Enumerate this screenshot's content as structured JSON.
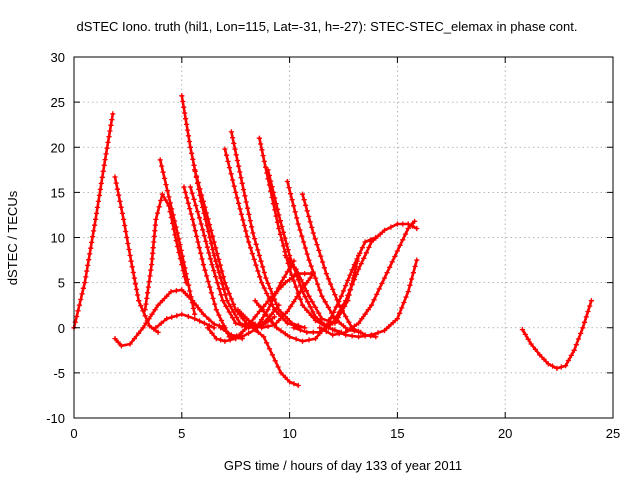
{
  "chart_data": {
    "type": "scatter",
    "title": "dSTEC Iono. truth (hil1, Lon=115, Lat=-31, h=-27): STEC-STEC_elemax in phase cont.",
    "xlabel": "GPS time / hours of day 133 of year 2011",
    "ylabel": "dSTEC  / TECUs",
    "xlim": [
      0,
      25
    ],
    "ylim": [
      -10,
      30
    ],
    "xticks": [
      0,
      5,
      10,
      15,
      20,
      25
    ],
    "yticks": [
      -10,
      -5,
      0,
      5,
      10,
      15,
      20,
      25,
      30
    ],
    "grid": true,
    "marker": "plus",
    "color": "#ff0000",
    "series": [
      {
        "x": [
          0.0,
          0.5,
          1.0,
          1.4,
          1.8
        ],
        "y": [
          0.0,
          5.0,
          12.0,
          18.0,
          23.7
        ]
      },
      {
        "x": [
          1.9,
          2.3,
          2.6,
          3.0,
          3.5,
          3.9
        ],
        "y": [
          16.7,
          12.0,
          8.0,
          3.0,
          0.2,
          -0.5
        ]
      },
      {
        "x": [
          1.9,
          2.2,
          2.6,
          3.2,
          3.9,
          4.5,
          5.0,
          5.5,
          6.0,
          6.5,
          7.0
        ],
        "y": [
          -1.2,
          -2.0,
          -1.8,
          0.0,
          2.5,
          4.0,
          4.2,
          3.0,
          1.5,
          0.4,
          0.0
        ]
      },
      {
        "x": [
          3.8,
          4.3,
          5.0,
          5.6,
          6.5
        ],
        "y": [
          0.0,
          1.0,
          1.5,
          1.0,
          0.0
        ]
      },
      {
        "x": [
          4.0,
          4.4,
          4.8,
          5.2,
          5.6
        ],
        "y": [
          18.6,
          14.5,
          10.5,
          6.0,
          1.5
        ]
      },
      {
        "x": [
          3.3,
          3.6,
          3.8,
          4.1,
          4.4,
          4.8,
          5.2
        ],
        "y": [
          2.0,
          7.0,
          12.0,
          14.8,
          13.5,
          9.0,
          5.0
        ]
      },
      {
        "x": [
          5.0,
          5.4,
          5.9,
          6.5,
          7.1,
          7.7,
          8.3,
          8.8,
          9.2,
          9.6,
          10.0,
          10.4
        ],
        "y": [
          25.7,
          20.0,
          14.0,
          8.0,
          3.0,
          0.5,
          0.0,
          -1.0,
          -3.0,
          -5.0,
          -6.0,
          -6.4
        ]
      },
      {
        "x": [
          5.1,
          5.5,
          6.0,
          6.6,
          7.2,
          7.8
        ],
        "y": [
          15.6,
          12.0,
          7.0,
          2.0,
          -1.0,
          -1.2
        ]
      },
      {
        "x": [
          5.4,
          5.9,
          6.4,
          6.9,
          7.5,
          8.1,
          8.7,
          9.3
        ],
        "y": [
          15.6,
          11.5,
          7.0,
          3.0,
          0.5,
          0.0,
          0.2,
          1.2
        ]
      },
      {
        "x": [
          5.6,
          6.0,
          6.5,
          7.0,
          7.5,
          8.0,
          8.5,
          9.0,
          9.5
        ],
        "y": [
          17.5,
          14.0,
          9.5,
          5.0,
          2.0,
          0.5,
          0.0,
          1.0,
          2.5
        ]
      },
      {
        "x": [
          7.0,
          7.5,
          8.1,
          8.7,
          9.3,
          9.9,
          10.5
        ],
        "y": [
          19.8,
          15.0,
          9.5,
          5.0,
          2.0,
          0.5,
          0.0
        ]
      },
      {
        "x": [
          7.3,
          7.8,
          8.3,
          8.9,
          9.5,
          10.1,
          10.7
        ],
        "y": [
          21.7,
          16.0,
          10.5,
          5.5,
          2.0,
          0.5,
          0.0
        ]
      },
      {
        "x": [
          8.6,
          9.0,
          9.5,
          10.0,
          10.6,
          11.2,
          11.8
        ],
        "y": [
          21.0,
          16.5,
          11.0,
          6.5,
          2.5,
          0.8,
          0.0
        ]
      },
      {
        "x": [
          9.0,
          9.5,
          10.0,
          10.6,
          11.2,
          11.8,
          12.4
        ],
        "y": [
          17.5,
          12.5,
          8.0,
          4.0,
          1.2,
          0.0,
          -0.5
        ]
      },
      {
        "x": [
          9.9,
          10.4,
          10.9,
          11.5,
          12.1,
          12.7,
          13.3
        ],
        "y": [
          16.2,
          11.5,
          7.5,
          3.5,
          1.0,
          -0.2,
          -0.5
        ]
      },
      {
        "x": [
          10.6,
          11.1,
          11.7,
          12.3,
          12.9,
          13.5,
          14.0
        ],
        "y": [
          14.8,
          10.5,
          6.0,
          2.5,
          0.0,
          -0.8,
          -1.0
        ]
      },
      {
        "x": [
          6.2,
          6.6,
          7.0,
          7.5,
          8.0,
          8.6,
          9.2,
          9.8,
          10.4,
          11.0
        ],
        "y": [
          0.0,
          -1.2,
          -1.5,
          -1.2,
          0.0,
          1.8,
          3.5,
          5.0,
          6.0,
          6.0
        ]
      },
      {
        "x": [
          6.8,
          7.3,
          7.8,
          8.4,
          9.0,
          9.6,
          10.2
        ],
        "y": [
          0.0,
          -0.8,
          -1.0,
          -0.2,
          2.0,
          5.0,
          7.4
        ]
      },
      {
        "x": [
          7.6,
          8.1,
          8.7,
          9.3,
          9.9,
          10.5,
          11.1
        ],
        "y": [
          2.0,
          0.8,
          0.0,
          0.3,
          1.8,
          4.0,
          6.0
        ]
      },
      {
        "x": [
          9.8,
          10.3,
          10.9,
          11.5,
          12.1,
          12.7,
          13.2
        ],
        "y": [
          8.0,
          6.5,
          3.5,
          1.0,
          0.5,
          3.0,
          8.0
        ]
      },
      {
        "x": [
          8.4,
          8.9,
          9.4,
          10.0,
          10.6,
          11.2,
          11.8,
          12.4,
          13.0,
          13.5,
          14.0
        ],
        "y": [
          3.0,
          1.5,
          0.0,
          -1.0,
          -1.5,
          -1.2,
          0.5,
          3.5,
          7.0,
          9.5,
          10.0
        ]
      },
      {
        "x": [
          11.4,
          12.0,
          12.6,
          13.2,
          13.8,
          14.4,
          15.0,
          15.5,
          15.8
        ],
        "y": [
          0.0,
          -0.8,
          -0.5,
          0.5,
          2.5,
          5.5,
          8.5,
          11.0,
          11.8
        ]
      },
      {
        "x": [
          10.2,
          10.8,
          11.4,
          12.0,
          12.6,
          13.2,
          13.8,
          14.4,
          15.0,
          15.5,
          15.9
        ],
        "y": [
          0.0,
          -0.5,
          -0.5,
          0.5,
          3.0,
          6.5,
          9.5,
          10.8,
          11.5,
          11.5,
          11.0
        ]
      },
      {
        "x": [
          12.0,
          12.6,
          13.2,
          13.8,
          14.4,
          15.0,
          15.5,
          15.9
        ],
        "y": [
          -0.2,
          -0.8,
          -1.0,
          -0.8,
          -0.3,
          1.0,
          4.0,
          7.5
        ]
      },
      {
        "x": [
          20.8,
          21.2,
          21.6,
          22.0,
          22.4,
          22.8,
          23.2,
          23.6,
          24.0
        ],
        "y": [
          -0.2,
          -1.8,
          -3.0,
          -4.0,
          -4.5,
          -4.2,
          -2.5,
          0.0,
          3.0
        ]
      }
    ]
  }
}
